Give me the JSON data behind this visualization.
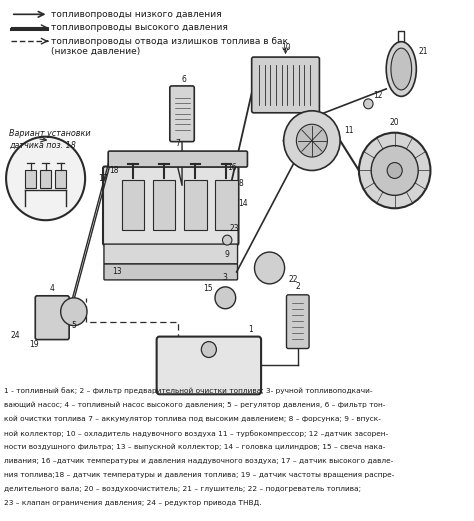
{
  "bg_color": "#ffffff",
  "fig_width": 4.74,
  "fig_height": 5.21,
  "dpi": 100,
  "legend_lines": [
    {
      "label": "топливопроводы низкого давления",
      "style": "solid_arrow"
    },
    {
      "label": "топливопроводы высокого давления",
      "style": "double_arrow"
    },
    {
      "label": "топливопроводы отвода излишков топлива в бак",
      "style": "dashed_arrow"
    },
    {
      "label": "(низкое давление)",
      "style": "none"
    }
  ],
  "inset_label": "Вариант установки\nдатчика поз. 18",
  "caption_lines": [
    "1 - топливный бак; 2 – фильтр предварительной очистки топлива; 3- ручной топливоподкачи-",
    "вающий насос; 4 – топливный насос высокого давления; 5 – регулятор давления, 6 – фильтр тон-",
    "кой очистки топлива 7 – аккумулятор топлива под высоким давлением; 8 – форсунка; 9 - впуск-",
    "ной коллектор; 10 – охладитель надувочного воздуха 11 – турбокомпрессор; 12 –датчик засорен-",
    "ности воздушного фильтра; 13 – выпускной коллектор; 14 – головка цилиндров; 15 – свеча нака-",
    "ливания; 16 –датчик температуры и давления наддувочного воздуха; 17 – датчик высокого давле-",
    "ния топлива;18 – датчик температуры и давления топлива; 19 – датчик частоты вращения распре-",
    "делительного вала; 20 – воздухоочиститель; 21 – глушитель; 22 – подогреватель топлива;",
    "23 – клапан ограничения давления; 24 – редуктор привода ТНВД."
  ],
  "text_color": "#1a1a1a",
  "diagram_color": "#2a2a2a"
}
